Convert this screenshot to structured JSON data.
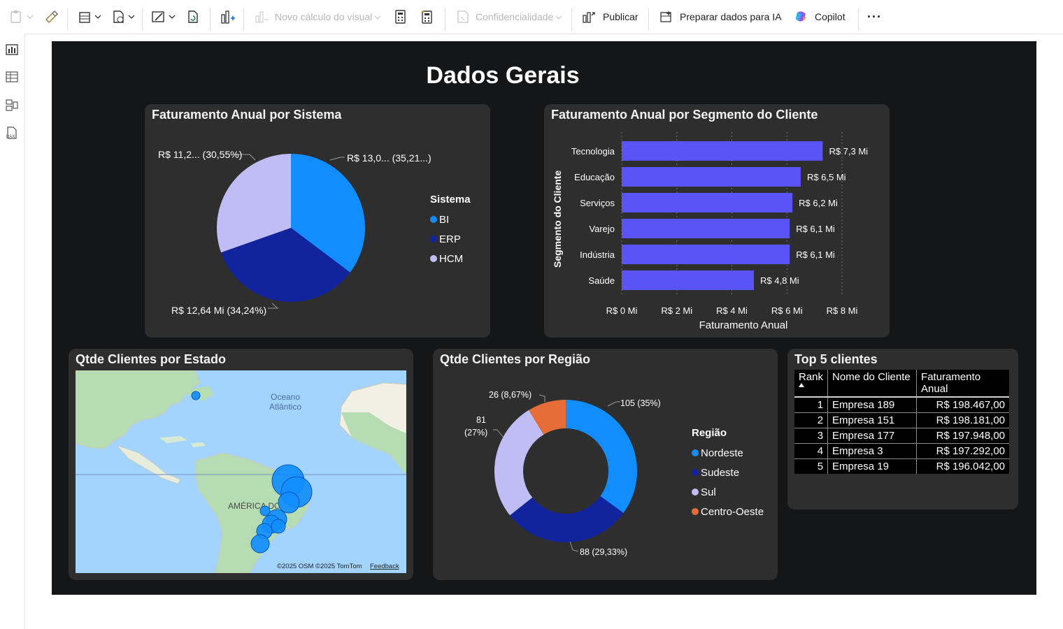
{
  "toolbar": {
    "novo_calculo": "Novo cálculo do visual",
    "confidencialidade": "Confidencialidade",
    "publicar": "Publicar",
    "preparar": "Preparar dados para IA",
    "copilot": "Copilot",
    "more": "···"
  },
  "page_title": "Dados Gerais",
  "pie_panel": {
    "title": "Faturamento Anual por Sistema",
    "labels": {
      "hcm": "R$ 11,2... (30,55%)",
      "bi": "R$ 13,0... (35,21...)",
      "erp": "R$ 12,64 Mi (34,24%)"
    },
    "legend_title": "Sistema",
    "legend": [
      {
        "name": "BI",
        "color": "#118dff"
      },
      {
        "name": "ERP",
        "color": "#12239e"
      },
      {
        "name": "HCM",
        "color": "#c0bdf5"
      }
    ]
  },
  "bar_panel": {
    "title": "Faturamento Anual por Segmento do Cliente",
    "ylabel": "Segmento do Cliente",
    "xlabel": "Faturamento Anual",
    "ticks": [
      "R$ 0 Mi",
      "R$ 2 Mi",
      "R$ 4 Mi",
      "R$ 6 Mi",
      "R$ 8 Mi"
    ],
    "bar_color": "#5a53f5"
  },
  "map_panel": {
    "title": "Qtde Clientes por Estado",
    "ocean_label_1": "Oceano",
    "ocean_label_2": "Atlântico",
    "continent_label": "AMÉRICA DO",
    "attribution": "©2025 OSM  ©2025 TomTom",
    "feedback": "Feedback"
  },
  "donut_panel": {
    "title": "Qtde Clientes por Região",
    "labels": {
      "nordeste": "105 (35%)",
      "sudeste": "88 (29,33%)",
      "sul_1": "81",
      "sul_2": "(27%)",
      "centro": "26 (8,67%)"
    },
    "legend_title": "Região",
    "legend": [
      {
        "name": "Nordeste",
        "color": "#118dff"
      },
      {
        "name": "Sudeste",
        "color": "#12239e"
      },
      {
        "name": "Sul",
        "color": "#c0bdf5"
      },
      {
        "name": "Centro-Oeste",
        "color": "#e66c37"
      }
    ]
  },
  "table_panel": {
    "title": "Top 5 clientes",
    "columns": [
      "Rank",
      "Nome do Cliente",
      "Faturamento Anual"
    ],
    "rows": [
      {
        "rank": "1",
        "name": "Empresa 189",
        "value": "R$ 198.467,00"
      },
      {
        "rank": "2",
        "name": "Empresa 151",
        "value": "R$ 198.181,00"
      },
      {
        "rank": "3",
        "name": "Empresa 177",
        "value": "R$ 197.948,00"
      },
      {
        "rank": "4",
        "name": "Empresa 3",
        "value": "R$ 197.292,00"
      },
      {
        "rank": "5",
        "name": "Empresa 19",
        "value": "R$ 196.042,00"
      }
    ]
  },
  "chart_data": [
    {
      "type": "pie",
      "title": "Faturamento Anual por Sistema",
      "legend_title": "Sistema",
      "categories": [
        "BI",
        "ERP",
        "HCM"
      ],
      "values": [
        13.0,
        12.64,
        11.2
      ],
      "percents": [
        35.21,
        34.24,
        30.55
      ],
      "unit": "R$ Mi",
      "legend_position": "right"
    },
    {
      "type": "bar",
      "orientation": "horizontal",
      "title": "Faturamento Anual por Segmento do Cliente",
      "categories": [
        "Tecnologia",
        "Educação",
        "Serviços",
        "Varejo",
        "Indústria",
        "Saúde"
      ],
      "values": [
        7.3,
        6.5,
        6.2,
        6.1,
        6.1,
        4.8
      ],
      "data_labels": [
        "R$ 7,3 Mi",
        "R$ 6,5 Mi",
        "R$ 6,2 Mi",
        "R$ 6,1 Mi",
        "R$ 6,1 Mi",
        "R$ 4,8 Mi"
      ],
      "xlabel": "Faturamento Anual",
      "ylabel": "Segmento do Cliente",
      "xlim": [
        0,
        8
      ],
      "grid": true
    },
    {
      "type": "pie",
      "title": "Qtde Clientes por Região",
      "legend_title": "Região",
      "categories": [
        "Nordeste",
        "Sudeste",
        "Sul",
        "Centro-Oeste"
      ],
      "values": [
        105,
        88,
        81,
        26
      ],
      "percents": [
        35,
        29.33,
        27,
        8.67
      ],
      "legend_position": "right"
    }
  ]
}
